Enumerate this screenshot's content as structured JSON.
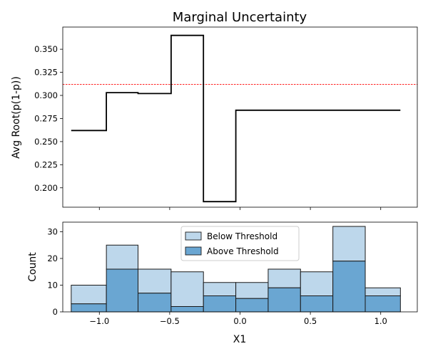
{
  "chart_data": [
    {
      "type": "line",
      "drawstyle": "steps",
      "title": "Marginal Uncertainty",
      "xlabel": "",
      "ylabel": "Avg Root(p(1-p))",
      "xlim": [
        -1.26,
        1.26
      ],
      "ylim": [
        0.179,
        0.374
      ],
      "xticks": [
        -1.0,
        -0.5,
        0.0,
        0.5,
        1.0
      ],
      "yticks": [
        0.2,
        0.225,
        0.25,
        0.275,
        0.3,
        0.325,
        0.35
      ],
      "ytick_labels": [
        "0.200",
        "0.225",
        "0.250",
        "0.275",
        "0.300",
        "0.325",
        "0.350"
      ],
      "series": [
        {
          "color": "#000000",
          "bin_edges": [
            -1.2,
            -0.95,
            -0.725,
            -0.49,
            -0.26,
            -0.03,
            0.2,
            0.43,
            0.66,
            0.89,
            1.14
          ],
          "values": [
            0.262,
            0.303,
            0.302,
            0.365,
            0.185,
            0.284,
            0.284,
            0.284,
            0.284,
            0.284
          ]
        }
      ],
      "reference_line": {
        "y": 0.312,
        "color": "#ff0000",
        "style": "dashed"
      },
      "grid": false
    },
    {
      "type": "bar",
      "stacked": true,
      "xlabel": "X1",
      "ylabel": "Count",
      "xlim": [
        -1.26,
        1.26
      ],
      "ylim": [
        0,
        33.6
      ],
      "xticks": [
        -1.0,
        -0.5,
        0.0,
        0.5,
        1.0
      ],
      "xtick_labels": [
        "−1.0",
        "−0.5",
        "0.0",
        "0.5",
        "1.0"
      ],
      "yticks": [
        0,
        10,
        20,
        30
      ],
      "bin_edges": [
        -1.2,
        -0.95,
        -0.725,
        -0.49,
        -0.26,
        -0.03,
        0.2,
        0.43,
        0.66,
        0.89,
        1.14
      ],
      "series": [
        {
          "name": "Below Threshold",
          "color": "#bdd7eb",
          "values": [
            7,
            9,
            9,
            13,
            5,
            6,
            7,
            9,
            13,
            3
          ]
        },
        {
          "name": "Above Threshold",
          "color": "#6aa6d2",
          "values": [
            3,
            16,
            7,
            2,
            6,
            5,
            9,
            6,
            19,
            6
          ]
        }
      ],
      "legend": {
        "placement": "upper center",
        "entries": [
          "Below Threshold",
          "Above Threshold"
        ]
      },
      "grid": false
    }
  ]
}
